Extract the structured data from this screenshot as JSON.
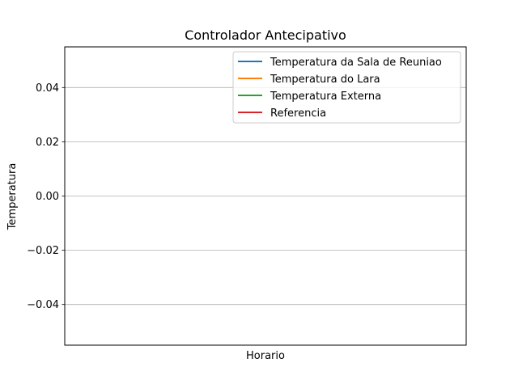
{
  "chart_data": {
    "type": "line",
    "title": "Controlador Antecipativo",
    "xlabel": "Horario",
    "ylabel": "Temperatura",
    "ylim": [
      -0.055,
      0.055
    ],
    "y_ticks": [
      {
        "value": 0.04,
        "label": "0.04"
      },
      {
        "value": 0.02,
        "label": "0.02"
      },
      {
        "value": 0.0,
        "label": "0.00"
      },
      {
        "value": -0.02,
        "label": "−0.02"
      },
      {
        "value": -0.04,
        "label": "−0.04"
      }
    ],
    "x_ticks": [],
    "grid": "horizontal",
    "legend_position": "upper right",
    "series": [
      {
        "name": "Temperatura da Sala de Reuniao",
        "color": "#1f77b4",
        "x": [],
        "y": []
      },
      {
        "name": "Temperatura do Lara",
        "color": "#ff7f0e",
        "x": [],
        "y": []
      },
      {
        "name": "Temperatura Externa",
        "color": "#2ca02c",
        "x": [],
        "y": []
      },
      {
        "name": "Referencia",
        "color": "#d62728",
        "x": [],
        "y": []
      }
    ]
  }
}
